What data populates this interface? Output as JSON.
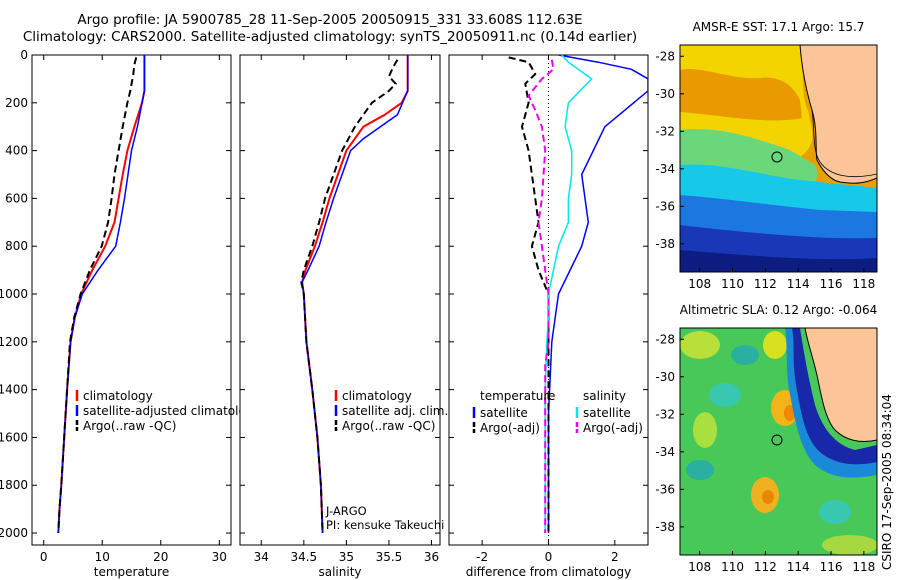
{
  "header": {
    "line1": "Argo profile: JA 5900785_28 11-Sep-2005 20050915_331 33.608S 112.63E",
    "line2": "Climatology: CARS2000. Satellite-adjusted climatology: synTS_20050911.nc (0.14d earlier)"
  },
  "side_label": "CSIRO 17-Sep-2005 08:34:04",
  "chart_data": [
    {
      "type": "line",
      "xlabel": "temperature",
      "ylabel": "",
      "xlim": [
        -2,
        32
      ],
      "ylim": [
        2050,
        0
      ],
      "xticks": [
        0,
        10,
        20,
        30
      ],
      "yticks": [
        0,
        200,
        400,
        600,
        800,
        1000,
        1200,
        1400,
        1600,
        1800,
        2000
      ],
      "legend": [
        "climatology",
        "satellite-adjusted climatology",
        "Argo(..raw -QC)"
      ],
      "series": [
        {
          "name": "climatology",
          "color": "#ff0000",
          "dash": "",
          "width": 2,
          "points": [
            [
              17.2,
              0
            ],
            [
              17.2,
              150
            ],
            [
              16.8,
              200
            ],
            [
              15.5,
              300
            ],
            [
              14.3,
              400
            ],
            [
              13.5,
              500
            ],
            [
              12.8,
              600
            ],
            [
              12.1,
              700
            ],
            [
              10.5,
              800
            ],
            [
              8.3,
              900
            ],
            [
              6.4,
              1000
            ],
            [
              5.3,
              1100
            ],
            [
              4.6,
              1200
            ],
            [
              4.0,
              1400
            ],
            [
              3.5,
              1600
            ],
            [
              3.0,
              1800
            ],
            [
              2.7,
              1900
            ],
            [
              2.5,
              2000
            ]
          ]
        },
        {
          "name": "satellite-adjusted climatology",
          "color": "#0000ff",
          "dash": "",
          "width": 1.5,
          "points": [
            [
              17.2,
              0
            ],
            [
              17.2,
              150
            ],
            [
              16.0,
              300
            ],
            [
              15.0,
              400
            ],
            [
              14.4,
              500
            ],
            [
              13.8,
              600
            ],
            [
              13.1,
              700
            ],
            [
              12.3,
              800
            ],
            [
              9.3,
              900
            ],
            [
              6.6,
              1000
            ],
            [
              5.3,
              1100
            ],
            [
              4.6,
              1200
            ],
            [
              4.0,
              1400
            ],
            [
              3.5,
              1600
            ],
            [
              3.0,
              1800
            ],
            [
              2.7,
              1900
            ],
            [
              2.5,
              2000
            ]
          ]
        },
        {
          "name": "Argo(..raw -QC)",
          "color": "#000000",
          "dash": "7 4",
          "width": 2,
          "points": [
            [
              15.8,
              10
            ],
            [
              15.5,
              40
            ],
            [
              15.3,
              80
            ],
            [
              14.8,
              150
            ],
            [
              14.3,
              200
            ],
            [
              13.5,
              300
            ],
            [
              12.8,
              400
            ],
            [
              12.1,
              500
            ],
            [
              11.6,
              600
            ],
            [
              11.0,
              700
            ],
            [
              9.9,
              800
            ],
            [
              7.9,
              900
            ],
            [
              6.3,
              1000
            ],
            [
              5.2,
              1100
            ],
            [
              4.5,
              1200
            ],
            [
              4.0,
              1400
            ],
            [
              3.5,
              1600
            ],
            [
              3.0,
              1800
            ],
            [
              2.7,
              1900
            ],
            [
              2.5,
              2000
            ]
          ]
        }
      ]
    },
    {
      "type": "line",
      "xlabel": "salinity",
      "ylabel": "",
      "xlim": [
        33.75,
        36.1
      ],
      "ylim": [
        2050,
        0
      ],
      "xticks": [
        34,
        34.5,
        35,
        35.5,
        36
      ],
      "xtick_labels": [
        "34",
        "34.5",
        "35",
        "35.5",
        "36"
      ],
      "legend": [
        "climatology",
        "satellite adj. clim.",
        "Argo(..raw -QC)"
      ],
      "series": [
        {
          "name": "climatology",
          "color": "#ff0000",
          "dash": "",
          "width": 2,
          "points": [
            [
              35.72,
              0
            ],
            [
              35.72,
              150
            ],
            [
              35.65,
              200
            ],
            [
              35.45,
              250
            ],
            [
              35.2,
              300
            ],
            [
              35.0,
              400
            ],
            [
              34.9,
              500
            ],
            [
              34.8,
              600
            ],
            [
              34.72,
              700
            ],
            [
              34.63,
              800
            ],
            [
              34.52,
              900
            ],
            [
              34.48,
              950
            ],
            [
              34.5,
              1000
            ],
            [
              34.53,
              1200
            ],
            [
              34.6,
              1400
            ],
            [
              34.66,
              1600
            ],
            [
              34.7,
              1800
            ],
            [
              34.72,
              2000
            ]
          ]
        },
        {
          "name": "satellite adj. clim.",
          "color": "#0000ff",
          "dash": "",
          "width": 1.5,
          "points": [
            [
              35.72,
              0
            ],
            [
              35.72,
              150
            ],
            [
              35.6,
              250
            ],
            [
              35.4,
              300
            ],
            [
              35.2,
              350
            ],
            [
              35.05,
              400
            ],
            [
              34.95,
              500
            ],
            [
              34.85,
              600
            ],
            [
              34.76,
              700
            ],
            [
              34.68,
              800
            ],
            [
              34.55,
              900
            ],
            [
              34.48,
              950
            ],
            [
              34.5,
              1000
            ],
            [
              34.53,
              1200
            ],
            [
              34.6,
              1400
            ],
            [
              34.66,
              1600
            ],
            [
              34.7,
              1800
            ],
            [
              34.72,
              2000
            ]
          ]
        },
        {
          "name": "Argo(..raw -QC)",
          "color": "#000000",
          "dash": "7 4",
          "width": 2,
          "points": [
            [
              35.6,
              20
            ],
            [
              35.55,
              50
            ],
            [
              35.5,
              90
            ],
            [
              35.58,
              120
            ],
            [
              35.5,
              150
            ],
            [
              35.3,
              200
            ],
            [
              35.1,
              300
            ],
            [
              34.95,
              400
            ],
            [
              34.85,
              500
            ],
            [
              34.75,
              600
            ],
            [
              34.68,
              700
            ],
            [
              34.6,
              800
            ],
            [
              34.5,
              900
            ],
            [
              34.47,
              950
            ],
            [
              34.5,
              1000
            ],
            [
              34.53,
              1200
            ],
            [
              34.6,
              1400
            ],
            [
              34.66,
              1600
            ],
            [
              34.7,
              1800
            ],
            [
              34.72,
              2000
            ]
          ]
        }
      ],
      "annotation": [
        "J-ARGO",
        "PI: kensuke Takeuchi"
      ]
    },
    {
      "type": "line",
      "xlabel": "difference from climatology",
      "ylabel": "",
      "xlim": [
        -3,
        3
      ],
      "ylim": [
        2050,
        0
      ],
      "xticks": [
        -2,
        0,
        2
      ],
      "reference_line_x": 0,
      "legend_headers": [
        "temperature",
        "salinity"
      ],
      "legend": [
        "satellite",
        "Argo(-adj)",
        "satellite",
        "Argo(-adj)"
      ],
      "series": [
        {
          "name": "satellite",
          "group": "temperature",
          "color": "#0000ff",
          "dash": "",
          "width": 1.5,
          "points": [
            [
              0.3,
              0
            ],
            [
              1.5,
              30
            ],
            [
              2.5,
              60
            ],
            [
              3.0,
              100
            ],
            [
              3.0,
              150
            ],
            [
              1.7,
              300
            ],
            [
              1.0,
              500
            ],
            [
              1.2,
              700
            ],
            [
              1.0,
              800
            ],
            [
              0.3,
              1000
            ],
            [
              0.1,
              1200
            ],
            [
              0,
              1500
            ],
            [
              0,
              2000
            ]
          ]
        },
        {
          "name": "Argo(-adj)",
          "group": "temperature",
          "color": "#000000",
          "dash": "7 4",
          "width": 2,
          "points": [
            [
              -1.2,
              10
            ],
            [
              -0.6,
              30
            ],
            [
              -0.4,
              80
            ],
            [
              -0.7,
              120
            ],
            [
              -0.6,
              200
            ],
            [
              -0.8,
              300
            ],
            [
              -0.6,
              400
            ],
            [
              -0.5,
              500
            ],
            [
              -0.4,
              600
            ],
            [
              -0.3,
              700
            ],
            [
              -0.5,
              800
            ],
            [
              -0.3,
              900
            ],
            [
              0,
              1000
            ],
            [
              0,
              2000
            ]
          ]
        },
        {
          "name": "satellite",
          "group": "salinity",
          "color": "#00e8e8",
          "dash": "",
          "width": 1.5,
          "points": [
            [
              0.4,
              0
            ],
            [
              0.6,
              30
            ],
            [
              1.3,
              100
            ],
            [
              0.6,
              200
            ],
            [
              0.5,
              300
            ],
            [
              0.7,
              400
            ],
            [
              0.7,
              500
            ],
            [
              0.6,
              600
            ],
            [
              0.6,
              700
            ],
            [
              0.3,
              800
            ],
            [
              0,
              1000
            ],
            [
              0,
              1100
            ],
            [
              -0.05,
              1200
            ],
            [
              -0.1,
              1400
            ],
            [
              -0.1,
              2000
            ]
          ]
        },
        {
          "name": "Argo(-adj)",
          "group": "salinity",
          "color": "#ee00ee",
          "dash": "7 4",
          "width": 2,
          "points": [
            [
              0.1,
              20
            ],
            [
              0.15,
              60
            ],
            [
              -0.2,
              100
            ],
            [
              -0.6,
              170
            ],
            [
              -0.4,
              230
            ],
            [
              -0.2,
              300
            ],
            [
              -0.1,
              400
            ],
            [
              -0.2,
              600
            ],
            [
              -0.3,
              700
            ],
            [
              -0.2,
              800
            ],
            [
              -0.1,
              900
            ],
            [
              0,
              1000
            ],
            [
              0,
              1200
            ],
            [
              -0.1,
              1300
            ],
            [
              -0.1,
              2000
            ]
          ]
        }
      ]
    }
  ],
  "maps": [
    {
      "title": "AMSR-E SST: 17.1 Argo: 15.7",
      "xticks": [
        "108",
        "110",
        "112",
        "114",
        "116",
        "118"
      ],
      "yticks": [
        "-28",
        "-30",
        "-32",
        "-34",
        "-36",
        "-38"
      ],
      "marker": {
        "lon": 112.63,
        "lat": -33.608
      }
    },
    {
      "title": "Altimetric SLA: 0.12 Argo: -0.064",
      "xticks": [
        "108",
        "110",
        "112",
        "114",
        "116",
        "118"
      ],
      "yticks": [
        "-28",
        "-30",
        "-32",
        "-34",
        "-36",
        "-38"
      ],
      "marker": {
        "lon": 112.63,
        "lat": -33.608
      }
    }
  ]
}
